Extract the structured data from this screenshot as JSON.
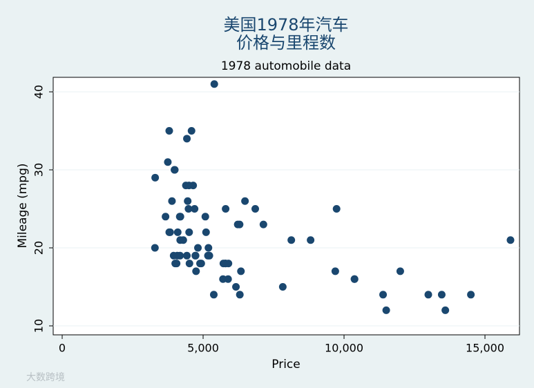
{
  "chart_data": {
    "type": "scatter",
    "title": "美国1978年汽车",
    "title_line2": "价格与里程数",
    "subtitle": "1978 automobile data",
    "x_label": "Price",
    "y_label": "Mileage (mpg)",
    "watermark": "大数跨境",
    "color": "#1a476f",
    "grid": true,
    "xlim": [
      -319,
      16225
    ],
    "ylim": [
      8.85,
      41.86
    ],
    "xticks": [
      0,
      {
        "value": 5000,
        "label": "5,000"
      },
      {
        "value": 10000,
        "label": "10,000"
      },
      {
        "value": 15000,
        "label": "15,000"
      }
    ],
    "yticks": [
      10,
      20,
      30,
      40
    ],
    "x": [
      4099,
      4749,
      3799,
      4816,
      7827,
      5788,
      4453,
      5189,
      10372,
      4082,
      11385,
      14500,
      15906,
      3299,
      5705,
      4504,
      5104,
      3667,
      3955,
      3984,
      4010,
      5886,
      6342,
      4389,
      4187,
      11497,
      13594,
      13466,
      3829,
      5379,
      6165,
      4516,
      6303,
      3291,
      8814,
      5172,
      4733,
      4890,
      4181,
      4195,
      10371,
      4647,
      4425,
      4482,
      6486,
      4060,
      5798,
      4934,
      5222,
      4723,
      4424,
      4172,
      9690,
      6295,
      9735,
      6229,
      4589,
      5079,
      8129,
      4296,
      5799,
      4499,
      3995,
      12990,
      3895,
      3798,
      5899,
      3748,
      5719,
      7140,
      5397,
      4697,
      6850,
      11995
    ],
    "values": [
      22,
      17,
      22,
      20,
      15,
      18,
      26,
      20,
      16,
      19,
      14,
      14,
      21,
      29,
      16,
      22,
      22,
      24,
      19,
      30,
      18,
      16,
      17,
      28,
      21,
      12,
      12,
      14,
      22,
      14,
      15,
      18,
      14,
      20,
      21,
      19,
      19,
      18,
      19,
      24,
      16,
      28,
      34,
      25,
      26,
      18,
      18,
      18,
      19,
      19,
      19,
      24,
      17,
      23,
      25,
      23,
      35,
      24,
      21,
      21,
      25,
      28,
      30,
      14,
      26,
      35,
      18,
      31,
      18,
      23,
      41,
      25,
      25,
      17
    ]
  }
}
